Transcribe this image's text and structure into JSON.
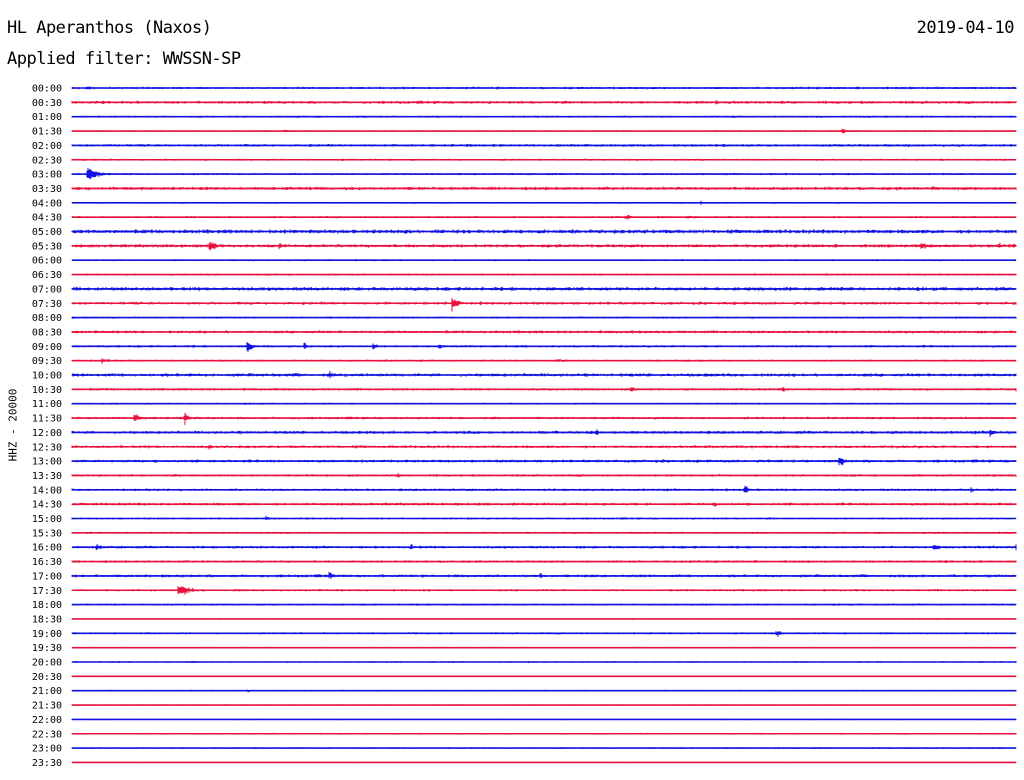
{
  "header": {
    "station": "HL Aperanthos (Naxos)",
    "date": "2019-04-10",
    "filter": "Applied filter: WWSSN-SP"
  },
  "axis": {
    "channel_label": "HHZ - 20000"
  },
  "colors": {
    "even_trace": "#1010e0",
    "odd_trace": "#e8103c",
    "text": "#000000",
    "background": "#ffffff"
  },
  "chart_data": {
    "type": "line",
    "title": "HL Aperanthos (Naxos)",
    "subtitle": "Applied filter: WWSSN-SP",
    "ylabel": "HHZ - 20000",
    "time_labels": [
      "00:00",
      "00:30",
      "01:00",
      "01:30",
      "02:00",
      "02:30",
      "03:00",
      "03:30",
      "04:00",
      "04:30",
      "05:00",
      "05:30",
      "06:00",
      "06:30",
      "07:00",
      "07:30",
      "08:00",
      "08:30",
      "09:00",
      "09:30",
      "10:00",
      "10:30",
      "11:00",
      "11:30",
      "12:00",
      "12:30",
      "13:00",
      "13:30",
      "14:00",
      "14:30",
      "15:00",
      "15:30",
      "16:00",
      "16:30",
      "17:00",
      "17:30",
      "18:00",
      "18:30",
      "19:00",
      "19:30",
      "20:00",
      "20:30",
      "21:00",
      "21:30",
      "22:00",
      "22:30",
      "23:00",
      "23:30"
    ],
    "traces_per_hour": 2,
    "trace_minutes": 30,
    "noise": [
      1.2,
      1.4,
      1.0,
      0.8,
      1.3,
      1.0,
      1.0,
      1.6,
      0.8,
      1.0,
      1.9,
      1.6,
      0.9,
      1.0,
      1.8,
      1.4,
      1.0,
      1.4,
      1.2,
      1.0,
      1.6,
      1.2,
      0.9,
      1.2,
      1.5,
      1.4,
      1.4,
      1.2,
      1.2,
      1.4,
      1.0,
      1.0,
      1.3,
      1.2,
      1.4,
      1.1,
      1.0,
      0.7,
      1.0,
      0.7,
      0.8,
      0.6,
      0.8,
      0.6,
      0.6,
      0.8,
      0.8,
      0.7
    ],
    "events": [
      {
        "trace": "00:00",
        "minute": 0.5,
        "amp": 3,
        "dur": 0.4
      },
      {
        "trace": "00:30",
        "minute": 20.5,
        "amp": 2,
        "dur": 0.5
      },
      {
        "trace": "01:00",
        "minute": 21,
        "amp": 1.5,
        "dur": 2
      },
      {
        "trace": "01:30",
        "minute": 6.8,
        "amp": 2,
        "dur": 0.2
      },
      {
        "trace": "01:30",
        "minute": 24.5,
        "amp": 4,
        "dur": 0.3
      },
      {
        "trace": "02:30",
        "minute": 8.6,
        "amp": 2,
        "dur": 0.2
      },
      {
        "trace": "03:00",
        "minute": 0.5,
        "amp": 10,
        "dur": 0.8
      },
      {
        "trace": "03:30",
        "minute": 27.4,
        "amp": 3,
        "dur": 0.6
      },
      {
        "trace": "04:00",
        "minute": 20,
        "amp": 2,
        "dur": 0.3
      },
      {
        "trace": "04:30",
        "minute": 17.6,
        "amp": 3,
        "dur": 0.8
      },
      {
        "trace": "04:30",
        "minute": 19.6,
        "amp": 2.5,
        "dur": 1.2
      },
      {
        "trace": "05:00",
        "minute": 5.5,
        "amp": 2,
        "dur": 0.4
      },
      {
        "trace": "05:30",
        "minute": 4.4,
        "amp": 6,
        "dur": 0.6
      },
      {
        "trace": "05:30",
        "minute": 6.6,
        "amp": 4,
        "dur": 0.4
      },
      {
        "trace": "05:30",
        "minute": 27.0,
        "amp": 5,
        "dur": 0.6
      },
      {
        "trace": "05:30",
        "minute": 29.5,
        "amp": 3,
        "dur": 0.5
      },
      {
        "trace": "06:30",
        "minute": 13,
        "amp": 1.5,
        "dur": 0.5
      },
      {
        "trace": "07:30",
        "minute": 12.1,
        "amp": 8,
        "dur": 0.5
      },
      {
        "trace": "07:30",
        "minute": 13.0,
        "amp": 2,
        "dur": 1.0
      },
      {
        "trace": "09:00",
        "minute": 5.6,
        "amp": 7,
        "dur": 0.4
      },
      {
        "trace": "09:00",
        "minute": 7.4,
        "amp": 4,
        "dur": 0.3
      },
      {
        "trace": "09:00",
        "minute": 9.6,
        "amp": 4,
        "dur": 0.4
      },
      {
        "trace": "09:00",
        "minute": 11.7,
        "amp": 3,
        "dur": 0.3
      },
      {
        "trace": "09:30",
        "minute": 1.0,
        "amp": 4,
        "dur": 0.5
      },
      {
        "trace": "09:30",
        "minute": 15.4,
        "amp": 2,
        "dur": 1.5
      },
      {
        "trace": "10:00",
        "minute": 8.2,
        "amp": 4,
        "dur": 0.4
      },
      {
        "trace": "10:00",
        "minute": 20.2,
        "amp": 2,
        "dur": 2.0
      },
      {
        "trace": "10:30",
        "minute": 17.8,
        "amp": 4,
        "dur": 0.3
      },
      {
        "trace": "10:30",
        "minute": 22.6,
        "amp": 3,
        "dur": 0.4
      },
      {
        "trace": "10:30",
        "minute": 30.0,
        "amp": 3,
        "dur": 0.3
      },
      {
        "trace": "11:30",
        "minute": 2.0,
        "amp": 5,
        "dur": 0.6
      },
      {
        "trace": "11:30",
        "minute": 3.6,
        "amp": 7,
        "dur": 0.4
      },
      {
        "trace": "11:30",
        "minute": 14.8,
        "amp": 2,
        "dur": 1.2
      },
      {
        "trace": "12:00",
        "minute": 16.7,
        "amp": 4,
        "dur": 0.2
      },
      {
        "trace": "12:00",
        "minute": 29.2,
        "amp": 7,
        "dur": 0.3
      },
      {
        "trace": "12:30",
        "minute": 4.4,
        "amp": 3,
        "dur": 0.3
      },
      {
        "trace": "13:00",
        "minute": 24.4,
        "amp": 7,
        "dur": 0.4
      },
      {
        "trace": "13:30",
        "minute": 10.4,
        "amp": 3,
        "dur": 0.4
      },
      {
        "trace": "14:00",
        "minute": 21.4,
        "amp": 6,
        "dur": 0.3
      },
      {
        "trace": "14:00",
        "minute": 28.6,
        "amp": 3,
        "dur": 0.4
      },
      {
        "trace": "14:30",
        "minute": 20.4,
        "amp": 3,
        "dur": 1.0
      },
      {
        "trace": "14:30",
        "minute": 14.0,
        "amp": 2,
        "dur": 3.0
      },
      {
        "trace": "15:00",
        "minute": 6.2,
        "amp": 3,
        "dur": 0.3
      },
      {
        "trace": "16:00",
        "minute": 0.8,
        "amp": 4,
        "dur": 0.4
      },
      {
        "trace": "16:00",
        "minute": 10.8,
        "amp": 4,
        "dur": 0.3
      },
      {
        "trace": "16:00",
        "minute": 27.4,
        "amp": 5,
        "dur": 0.5
      },
      {
        "trace": "16:00",
        "minute": 30.0,
        "amp": 3,
        "dur": 0.3
      },
      {
        "trace": "17:00",
        "minute": 8.2,
        "amp": 4,
        "dur": 0.5
      },
      {
        "trace": "17:00",
        "minute": 14.9,
        "amp": 3,
        "dur": 0.3
      },
      {
        "trace": "17:30",
        "minute": 3.4,
        "amp": 7,
        "dur": 1.2
      },
      {
        "trace": "19:00",
        "minute": 22.4,
        "amp": 4,
        "dur": 0.7
      },
      {
        "trace": "20:00",
        "minute": 3.8,
        "amp": 2,
        "dur": 0.5
      },
      {
        "trace": "21:00",
        "minute": 5.6,
        "amp": 2,
        "dur": 0.2
      }
    ]
  }
}
